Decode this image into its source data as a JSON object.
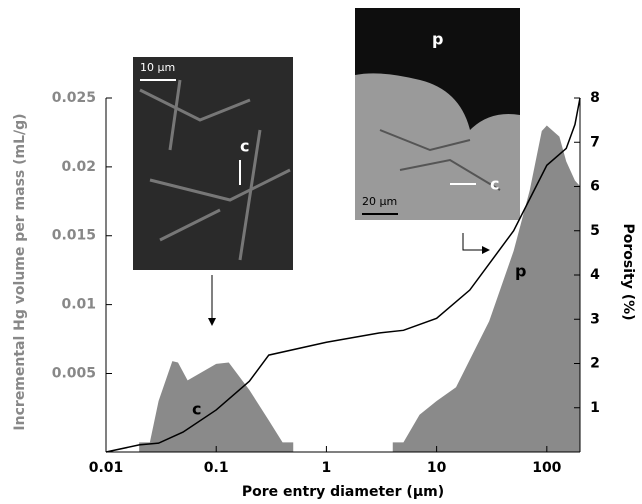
{
  "chart_data": {
    "type": "area_line",
    "x_label": "Pore entry diameter (µm)",
    "y_label": "Incremental Hg volume per mass (mL/g)",
    "y2_label": "Porosity (%)",
    "xlog": true,
    "xlim": [
      0.01,
      200
    ],
    "xticks": [
      0.01,
      0.1,
      1,
      10,
      100
    ],
    "ylim": [
      -0.0007,
      0.025
    ],
    "yticks": [
      0.005,
      0.01,
      0.015,
      0.02,
      0.025
    ],
    "y2lim": [
      0,
      8
    ],
    "y2ticks": [
      1,
      2,
      3,
      4,
      5,
      6,
      7,
      8
    ],
    "series": [
      {
        "name": "Incremental Hg volume",
        "kind": "area",
        "color": "#8a8a8a",
        "x": [
          0.02,
          0.025,
          0.03,
          0.04,
          0.045,
          0.055,
          0.1,
          0.13,
          0.2,
          0.3,
          0.4,
          0.5,
          null,
          4,
          5,
          7,
          10,
          15,
          20,
          30,
          50,
          70,
          90,
          100,
          130,
          150,
          180,
          200
        ],
        "values": [
          0,
          0,
          0.003,
          0.0059,
          0.0058,
          0.0045,
          0.0057,
          0.0058,
          0.0038,
          0.0016,
          0,
          0,
          null,
          0,
          0,
          0.002,
          0.003,
          0.004,
          0.006,
          0.0088,
          0.0139,
          0.0183,
          0.0226,
          0.023,
          0.0222,
          0.0204,
          0.019,
          0.0186
        ]
      },
      {
        "name": "Porosity",
        "kind": "line",
        "axis": "y2",
        "color": "#000000",
        "x": [
          0.01,
          0.02,
          0.03,
          0.05,
          0.1,
          0.2,
          0.3,
          1,
          3,
          5,
          10,
          20,
          50,
          100,
          150,
          180,
          200
        ],
        "values": [
          0,
          0.16,
          0.2,
          0.45,
          0.95,
          1.6,
          2.19,
          2.48,
          2.69,
          2.75,
          3.02,
          3.66,
          5.0,
          6.48,
          6.86,
          7.4,
          8
        ]
      }
    ],
    "annotations": [
      "c",
      "p",
      "10 µm",
      "c",
      "p",
      "20 µm",
      "c"
    ]
  }
}
